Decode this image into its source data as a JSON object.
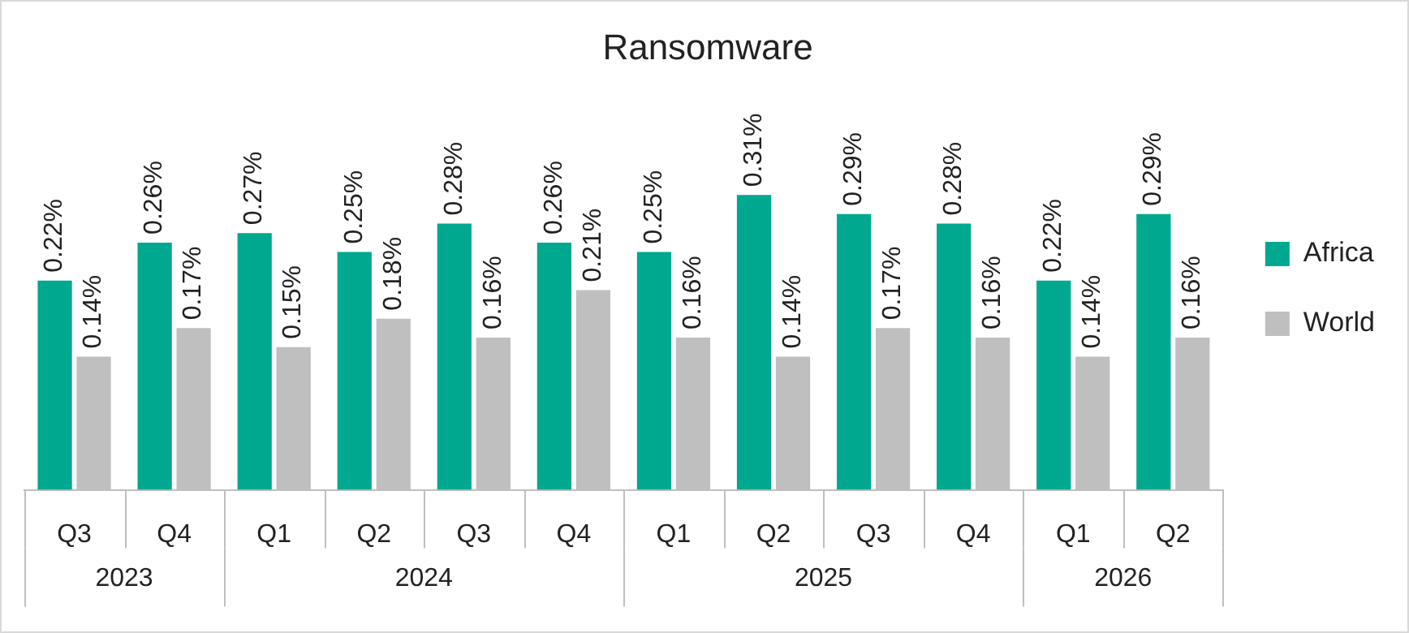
{
  "chart_data": {
    "type": "bar",
    "title": "Ransomware",
    "categories": [
      "Q3",
      "Q4",
      "Q1",
      "Q2",
      "Q3",
      "Q4",
      "Q1",
      "Q2",
      "Q3",
      "Q4",
      "Q1",
      "Q2"
    ],
    "series": [
      {
        "name": "Africa",
        "color": "#00a88f",
        "values": [
          0.22,
          0.26,
          0.27,
          0.25,
          0.28,
          0.26,
          0.25,
          0.31,
          0.29,
          0.28,
          0.22,
          0.29
        ],
        "value_labels": [
          "0.22%",
          "0.26%",
          "0.27%",
          "0.25%",
          "0.28%",
          "0.26%",
          "0.25%",
          "0.31%",
          "0.29%",
          "0.28%",
          "0.22%",
          "0.29%"
        ]
      },
      {
        "name": "World",
        "color": "#bfbfbf",
        "values": [
          0.14,
          0.17,
          0.15,
          0.18,
          0.16,
          0.21,
          0.16,
          0.14,
          0.17,
          0.16,
          0.14,
          0.16
        ],
        "value_labels": [
          "0.14%",
          "0.17%",
          "0.15%",
          "0.18%",
          "0.16%",
          "0.21%",
          "0.16%",
          "0.14%",
          "0.17%",
          "0.16%",
          "0.14%",
          "0.16%"
        ]
      }
    ],
    "annotations": [
      "2023",
      "2024",
      "2025",
      "2026"
    ],
    "legend": "right",
    "grid": false
  }
}
